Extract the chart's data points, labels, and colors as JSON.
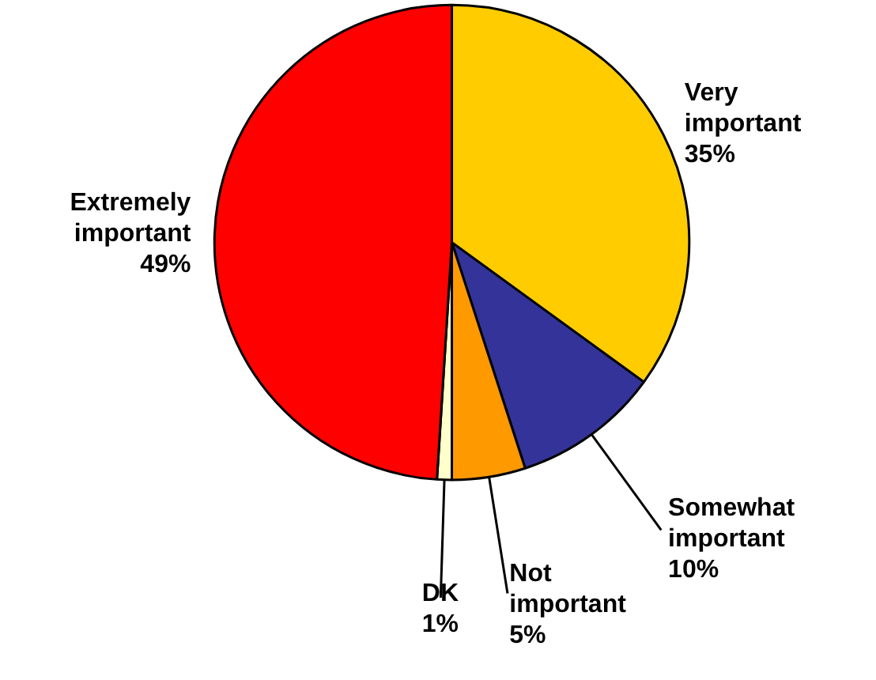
{
  "chart_data": {
    "type": "pie",
    "categories": [
      "Very important",
      "Somewhat important",
      "Not important",
      "DK",
      "Extremely important"
    ],
    "values": [
      35,
      10,
      5,
      1,
      49
    ],
    "colors": [
      "#ffcc00",
      "#333399",
      "#ff9900",
      "#ffffcc",
      "#ff0000"
    ],
    "value_labels": [
      "35%",
      "10%",
      "5%",
      "1%",
      "49%"
    ]
  }
}
